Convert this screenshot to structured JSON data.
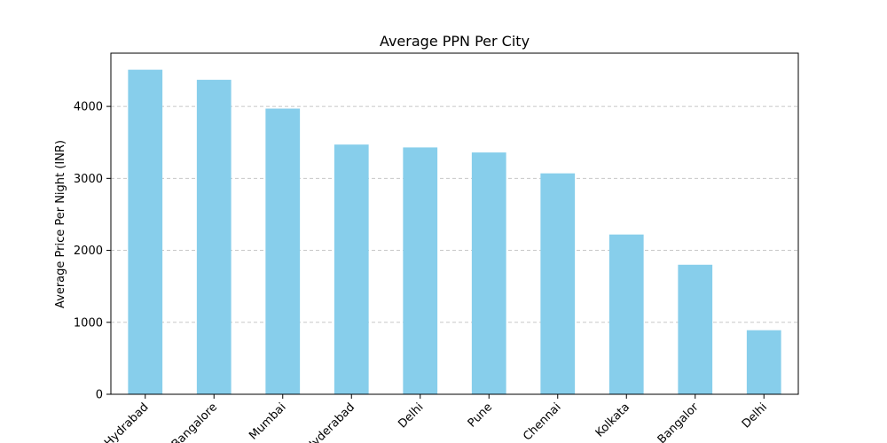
{
  "chart_data": {
    "type": "bar",
    "title": "Average PPN Per City",
    "xlabel": "",
    "ylabel": "Average Price Per Night (INR)",
    "categories": [
      "Hydrabad",
      "Bangalore",
      "Mumbai",
      "Hyderabad",
      "Delhi",
      "Pune",
      "Chennai",
      "Kolkata",
      "Bangalor",
      "Delhi"
    ],
    "values": [
      4510,
      4370,
      3970,
      3470,
      3430,
      3360,
      3070,
      2220,
      1800,
      890
    ],
    "ylim": [
      0,
      4740
    ],
    "yticks": [
      0,
      1000,
      2000,
      3000,
      4000
    ],
    "grid": "y-dashed",
    "bar_color": "#87ceeb",
    "grid_color": "#c8c8c8"
  }
}
